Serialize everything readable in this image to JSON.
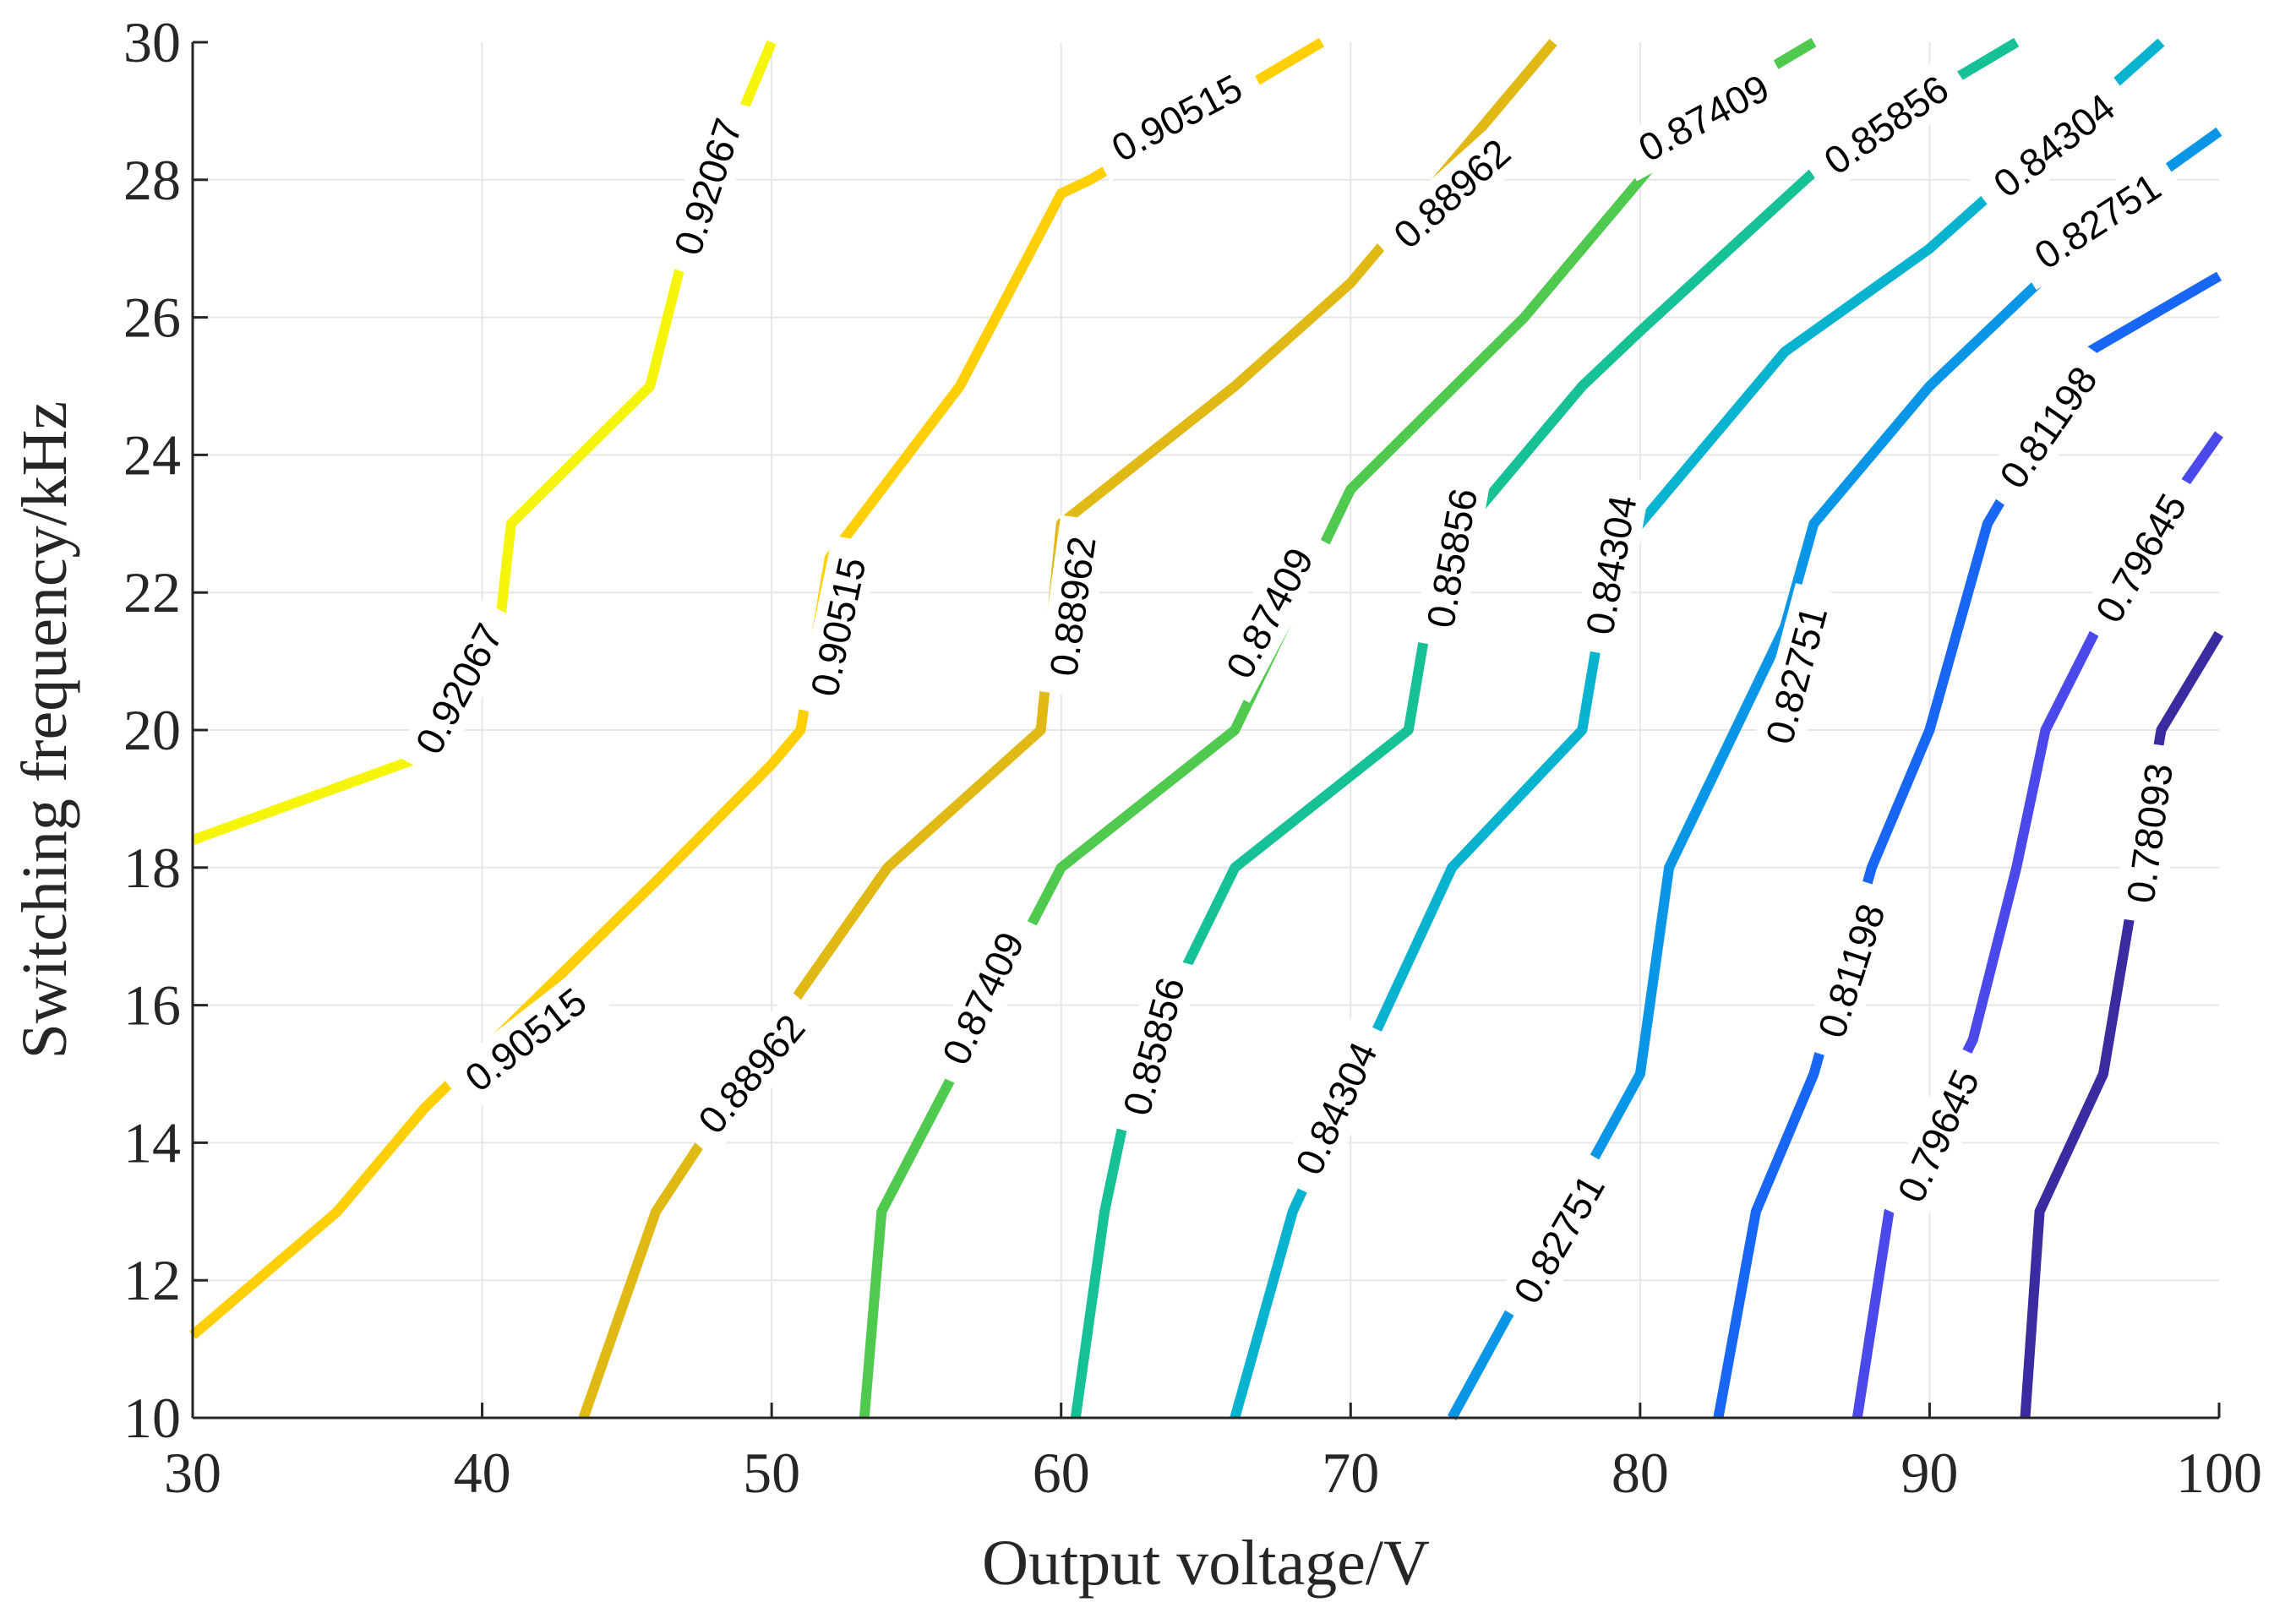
{
  "chart_data": {
    "type": "contour",
    "title": "",
    "xlabel": "Output voltage/V",
    "ylabel": "Switching frequency/kHz",
    "xlim": [
      30,
      100
    ],
    "ylim": [
      10,
      30
    ],
    "xticks": [
      30,
      40,
      50,
      60,
      70,
      80,
      90,
      100
    ],
    "xtick_labels": [
      "30",
      "40",
      "50",
      "60",
      "70",
      "80",
      "90",
      "100"
    ],
    "yticks": [
      10,
      12,
      14,
      16,
      18,
      20,
      22,
      24,
      26,
      28,
      30
    ],
    "ytick_labels": [
      "10",
      "12",
      "14",
      "16",
      "18",
      "20",
      "22",
      "24",
      "26",
      "28",
      "30"
    ],
    "grid": true,
    "series": [
      {
        "name": "0.92067",
        "color": "#f5f50a",
        "points": [
          [
            30,
            18.4
          ],
          [
            38.5,
            19.7
          ],
          [
            40.6,
            21.5
          ],
          [
            41,
            23
          ],
          [
            45.8,
            25
          ],
          [
            47,
            27
          ],
          [
            50,
            30
          ]
        ],
        "labels": [
          {
            "text": "0.92067",
            "at": [
              39.2,
              20.6
            ],
            "angle": -62
          },
          {
            "text": "0.92067",
            "at": [
              47.8,
              27.9
            ],
            "angle": -72
          }
        ]
      },
      {
        "name": "0.90515",
        "color": "#ffcf06",
        "points": [
          [
            30,
            11.2
          ],
          [
            35,
            13
          ],
          [
            38,
            14.5
          ],
          [
            46,
            17.8
          ],
          [
            50,
            19.5
          ],
          [
            51,
            20
          ],
          [
            52,
            22.5
          ],
          [
            56.5,
            25
          ],
          [
            60,
            27.8
          ],
          [
            61,
            28
          ],
          [
            69,
            30
          ]
        ],
        "labels": [
          {
            "text": "0.90515",
            "at": [
              41.5,
              15.5
            ],
            "angle": -38
          },
          {
            "text": "0.90515",
            "at": [
              52.3,
              21.5
            ],
            "angle": -78
          },
          {
            "text": "0.90515",
            "at": [
              64,
              28.9
            ],
            "angle": -28
          }
        ]
      },
      {
        "name": "0.88962",
        "color": "#e0b914",
        "points": [
          [
            43.5,
            10
          ],
          [
            46,
            13
          ],
          [
            51,
            16.2
          ],
          [
            54,
            18
          ],
          [
            59.3,
            20
          ],
          [
            60,
            23
          ],
          [
            66,
            25
          ],
          [
            70,
            26.5
          ],
          [
            77,
            30
          ]
        ],
        "labels": [
          {
            "text": "0.88962",
            "at": [
              49.3,
              15
            ],
            "angle": -50
          },
          {
            "text": "0.88962",
            "at": [
              60.4,
              21.8
            ],
            "angle": -82
          },
          {
            "text": "0.88962",
            "at": [
              73.5,
              27.8
            ],
            "angle": -42
          }
        ]
      },
      {
        "name": "0.87409",
        "color": "#4fca4f",
        "points": [
          [
            53.2,
            10
          ],
          [
            53.8,
            13
          ],
          [
            60,
            18
          ],
          [
            66,
            20
          ],
          [
            70,
            23.5
          ],
          [
            76,
            26
          ],
          [
            82,
            29
          ],
          [
            86,
            30
          ]
        ],
        "labels": [
          {
            "text": "0.87409",
            "at": [
              57.3,
              16.1
            ],
            "angle": -65
          },
          {
            "text": "0.87409",
            "at": [
              67.2,
              21.7
            ],
            "angle": -62
          },
          {
            "text": "0.87409",
            "at": [
              82.2,
              28.9
            ],
            "angle": -28
          }
        ]
      },
      {
        "name": "0.85856",
        "color": "#16c195",
        "points": [
          [
            60.5,
            10
          ],
          [
            61.5,
            13
          ],
          [
            62.5,
            15
          ],
          [
            66,
            18
          ],
          [
            72,
            20
          ],
          [
            73,
            22.5
          ],
          [
            78,
            25
          ],
          [
            80,
            25.8
          ],
          [
            87,
            28.5
          ],
          [
            93,
            30
          ]
        ],
        "labels": [
          {
            "text": "0.85856",
            "at": [
              63.2,
              15.4
            ],
            "angle": -75
          },
          {
            "text": "0.85856",
            "at": [
              73.5,
              22.5
            ],
            "angle": -80
          },
          {
            "text": "0.85856",
            "at": [
              88.5,
              28.8
            ],
            "angle": -35
          }
        ]
      },
      {
        "name": "0.84304",
        "color": "#08b3cf",
        "points": [
          [
            66,
            10
          ],
          [
            68,
            13
          ],
          [
            73.5,
            18
          ],
          [
            78,
            20
          ],
          [
            79,
            22.5
          ],
          [
            85,
            25.5
          ],
          [
            90,
            27
          ],
          [
            98,
            30
          ]
        ],
        "labels": [
          {
            "text": "0.84304",
            "at": [
              69.5,
              14.5
            ],
            "angle": -65
          },
          {
            "text": "0.84304",
            "at": [
              79,
              22.4
            ],
            "angle": -80
          },
          {
            "text": "0.84304",
            "at": [
              94.3,
              28.5
            ],
            "angle": -38
          }
        ]
      },
      {
        "name": "0.82751",
        "color": "#0a96e6",
        "points": [
          [
            73.5,
            10
          ],
          [
            80,
            15
          ],
          [
            81,
            18
          ],
          [
            85,
            21.5
          ],
          [
            86,
            23
          ],
          [
            90,
            25
          ],
          [
            97,
            27.8
          ],
          [
            100,
            28.7
          ]
        ],
        "labels": [
          {
            "text": "0.82751",
            "at": [
              77.2,
              12.6
            ],
            "angle": -60
          },
          {
            "text": "0.82751",
            "at": [
              85.4,
              20.8
            ],
            "angle": -75
          },
          {
            "text": "0.82751",
            "at": [
              95.8,
              27.4
            ],
            "angle": -33
          }
        ]
      },
      {
        "name": "0.81198",
        "color": "#1866f4",
        "points": [
          [
            82.7,
            10
          ],
          [
            84,
            13
          ],
          [
            86,
            15
          ],
          [
            88,
            18
          ],
          [
            90,
            20
          ],
          [
            92,
            23
          ],
          [
            95.5,
            25.5
          ],
          [
            100,
            26.6
          ]
        ],
        "labels": [
          {
            "text": "0.81198",
            "at": [
              87.3,
              16.5
            ],
            "angle": -72
          },
          {
            "text": "0.81198",
            "at": [
              94.1,
              24.4
            ],
            "angle": -55
          }
        ]
      },
      {
        "name": "0.79645",
        "color": "#4b49ec",
        "points": [
          [
            87.5,
            10
          ],
          [
            88.6,
            13
          ],
          [
            91.5,
            15.5
          ],
          [
            93,
            18
          ],
          [
            94,
            20
          ],
          [
            97,
            22.5
          ],
          [
            100,
            24.3
          ]
        ],
        "labels": [
          {
            "text": "0.79645",
            "at": [
              90.3,
              14.1
            ],
            "angle": -65
          },
          {
            "text": "0.79645",
            "at": [
              97.3,
              22.5
            ],
            "angle": -60
          }
        ]
      },
      {
        "name": "0.78093",
        "color": "#3a2ba0",
        "points": [
          [
            93.3,
            10
          ],
          [
            93.8,
            13
          ],
          [
            96,
            15
          ],
          [
            97,
            17.5
          ],
          [
            98,
            20
          ],
          [
            100,
            21.4
          ]
        ],
        "labels": [
          {
            "text": "0.78093",
            "at": [
              97.6,
              18.5
            ],
            "angle": -82
          }
        ]
      }
    ]
  }
}
